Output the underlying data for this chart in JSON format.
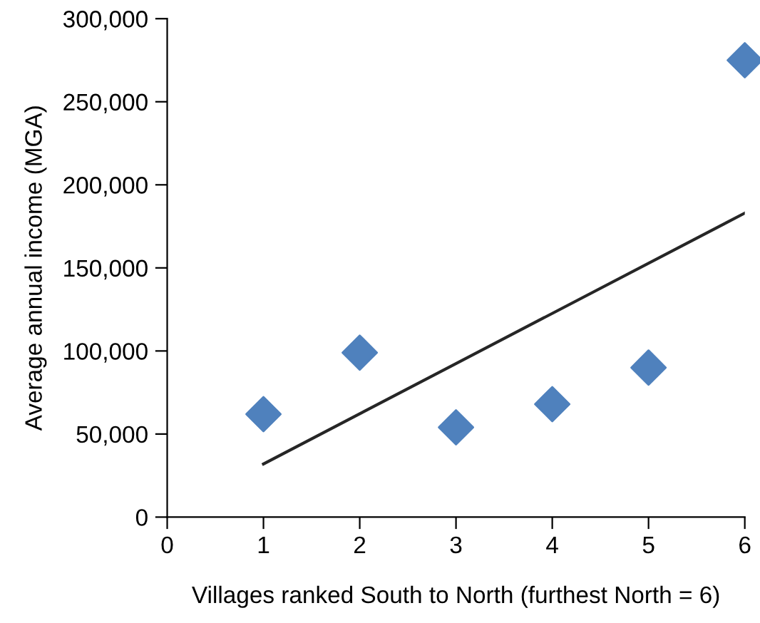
{
  "chart_data": {
    "type": "scatter",
    "xlabel": "Villages ranked South to North (furthest North = 6)",
    "ylabel": "Average annual income (MGA)",
    "series": [
      {
        "color": "#4f81bd",
        "marker": "diamond",
        "x": [
          1,
          2,
          3,
          4,
          5,
          6
        ],
        "values": [
          62000,
          99000,
          54000,
          68000,
          90000,
          275000
        ]
      },
      {
        "type": "line",
        "color": "#262626",
        "line_style": "solid",
        "marker": "none",
        "x": [
          1,
          6
        ],
        "values": [
          32000,
          183000
        ]
      }
    ],
    "xlim": [
      0,
      6
    ],
    "ylim": [
      0,
      300000
    ],
    "xticks": [
      0,
      1,
      2,
      3,
      4,
      5,
      6
    ],
    "yticks": [
      0,
      {
        "value": 50000,
        "label": "50,000"
      },
      {
        "value": 100000,
        "label": "100,000"
      },
      {
        "value": 150000,
        "label": "150,000"
      },
      {
        "value": 200000,
        "label": "200,000"
      },
      {
        "value": 250000,
        "label": "250,000"
      },
      {
        "value": 300000,
        "label": "300,000"
      }
    ],
    "grid": false,
    "legend": false
  }
}
